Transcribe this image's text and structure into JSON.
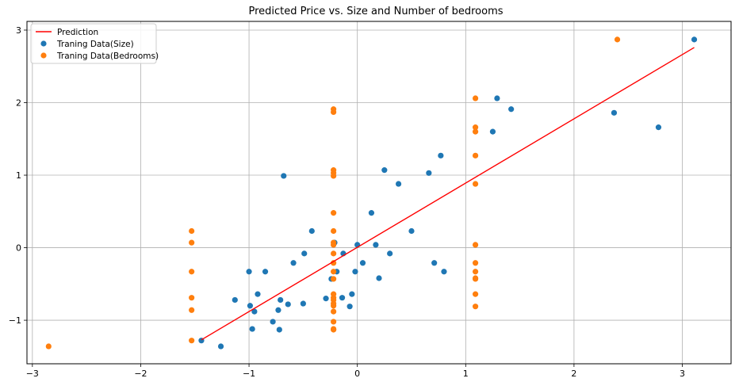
{
  "chart_data": {
    "type": "scatter",
    "title": "Predicted Price vs. Size and Number of bedrooms",
    "xlabel": "",
    "ylabel": "",
    "xlim": [
      -3.05,
      3.45
    ],
    "ylim": [
      -1.6,
      3.12
    ],
    "xticks": [
      -3,
      -2,
      -1,
      0,
      1,
      2,
      3
    ],
    "yticks": [
      -1,
      0,
      1,
      2,
      3
    ],
    "xtick_labels": [
      "−3",
      "−2",
      "−1",
      "0",
      "1",
      "2",
      "3"
    ],
    "ytick_labels": [
      "−1",
      "0",
      "1",
      "2",
      "3"
    ],
    "grid": true,
    "legend_position": "top-left",
    "series": [
      {
        "name": "Prediction",
        "kind": "line",
        "color": "#ff0000",
        "points": [
          [
            -1.44,
            -1.27
          ],
          [
            3.11,
            2.76
          ]
        ]
      },
      {
        "name": "Traning Data(Size)",
        "kind": "scatter",
        "color": "#1f77b4",
        "points": [
          [
            -1.44,
            -1.28
          ],
          [
            -1.26,
            -1.36
          ],
          [
            -1.13,
            -0.72
          ],
          [
            -1.0,
            -0.33
          ],
          [
            -0.99,
            -0.8
          ],
          [
            -0.97,
            -1.12
          ],
          [
            -0.95,
            -0.88
          ],
          [
            -0.92,
            -0.64
          ],
          [
            -0.85,
            -0.33
          ],
          [
            -0.78,
            -1.02
          ],
          [
            -0.73,
            -0.86
          ],
          [
            -0.72,
            -1.13
          ],
          [
            -0.71,
            -0.72
          ],
          [
            -0.68,
            0.99
          ],
          [
            -0.64,
            -0.78
          ],
          [
            -0.59,
            -0.21
          ],
          [
            -0.5,
            -0.77
          ],
          [
            -0.49,
            -0.08
          ],
          [
            -0.42,
            0.23
          ],
          [
            -0.29,
            -0.7
          ],
          [
            -0.24,
            -0.43
          ],
          [
            -0.21,
            0.07
          ],
          [
            -0.19,
            -0.33
          ],
          [
            -0.14,
            -0.69
          ],
          [
            -0.13,
            -0.08
          ],
          [
            -0.07,
            -0.81
          ],
          [
            -0.05,
            -0.64
          ],
          [
            -0.02,
            -0.33
          ],
          [
            0.0,
            0.04
          ],
          [
            0.05,
            -0.21
          ],
          [
            0.13,
            0.48
          ],
          [
            0.17,
            0.04
          ],
          [
            0.2,
            -0.42
          ],
          [
            0.25,
            1.07
          ],
          [
            0.3,
            -0.08
          ],
          [
            0.38,
            0.88
          ],
          [
            0.5,
            0.23
          ],
          [
            0.66,
            1.03
          ],
          [
            0.71,
            -0.21
          ],
          [
            0.77,
            1.27
          ],
          [
            0.8,
            -0.33
          ],
          [
            1.25,
            1.6
          ],
          [
            1.29,
            2.06
          ],
          [
            1.42,
            1.91
          ],
          [
            2.37,
            1.86
          ],
          [
            2.78,
            1.66
          ],
          [
            3.11,
            2.87
          ]
        ]
      },
      {
        "name": "Traning Data(Bedrooms)",
        "kind": "scatter",
        "color": "#ff7f0e",
        "points": [
          [
            -2.85,
            -1.36
          ],
          [
            -1.53,
            0.23
          ],
          [
            -1.53,
            0.07
          ],
          [
            -1.53,
            -0.33
          ],
          [
            -1.53,
            -0.69
          ],
          [
            -1.53,
            -0.86
          ],
          [
            -1.53,
            -1.28
          ],
          [
            -0.22,
            1.91
          ],
          [
            -0.22,
            1.87
          ],
          [
            -0.22,
            1.07
          ],
          [
            -0.22,
            1.03
          ],
          [
            -0.22,
            0.99
          ],
          [
            -0.22,
            0.48
          ],
          [
            -0.22,
            0.23
          ],
          [
            -0.22,
            0.07
          ],
          [
            -0.22,
            0.04
          ],
          [
            -0.22,
            -0.08
          ],
          [
            -0.22,
            -0.21
          ],
          [
            -0.22,
            -0.33
          ],
          [
            -0.22,
            -0.43
          ],
          [
            -0.22,
            -0.64
          ],
          [
            -0.22,
            -0.69
          ],
          [
            -0.22,
            -0.72
          ],
          [
            -0.22,
            -0.77
          ],
          [
            -0.22,
            -0.8
          ],
          [
            -0.22,
            -0.88
          ],
          [
            -0.22,
            -1.02
          ],
          [
            -0.22,
            -1.12
          ],
          [
            -0.22,
            -1.13
          ],
          [
            1.09,
            2.06
          ],
          [
            1.09,
            1.66
          ],
          [
            1.09,
            1.6
          ],
          [
            1.09,
            1.27
          ],
          [
            1.09,
            0.88
          ],
          [
            1.09,
            0.04
          ],
          [
            1.09,
            -0.21
          ],
          [
            1.09,
            -0.33
          ],
          [
            1.09,
            -0.42
          ],
          [
            1.09,
            -0.43
          ],
          [
            1.09,
            -0.64
          ],
          [
            1.09,
            -0.81
          ],
          [
            2.4,
            2.87
          ]
        ]
      }
    ]
  }
}
